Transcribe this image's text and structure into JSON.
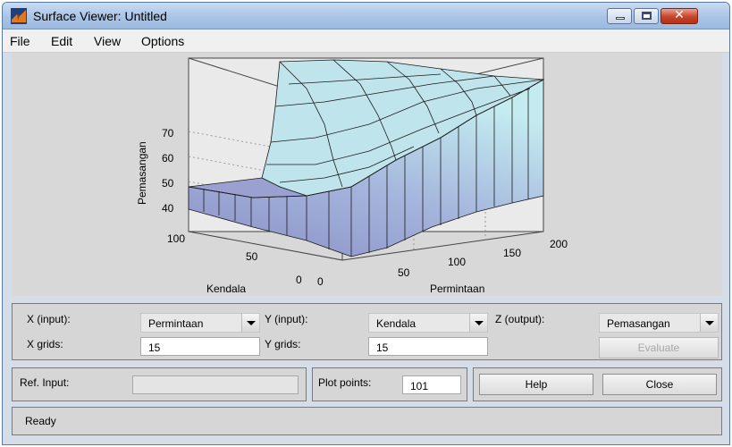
{
  "window": {
    "title": "Surface Viewer: Untitled"
  },
  "menu": [
    "File",
    "Edit",
    "View",
    "Options"
  ],
  "plot": {
    "zlabel": "Pemasangan",
    "xlabel": "Permintaan",
    "ylabel": "Kendala",
    "z_ticks": [
      "70",
      "60",
      "50",
      "40"
    ],
    "x_ticks": [
      "0",
      "50",
      "100",
      "150",
      "200"
    ],
    "y_ticks": [
      "100",
      "50",
      "0"
    ],
    "surface_color_high": "#bfe8ee",
    "surface_color_low": "#8a8fc6"
  },
  "controls": {
    "x_input_label": "X (input):",
    "x_input_value": "Permintaan",
    "y_input_label": "Y (input):",
    "y_input_value": "Kendala",
    "z_output_label": "Z (output):",
    "z_output_value": "Pemasangan",
    "x_grids_label": "X grids:",
    "x_grids_value": "15",
    "y_grids_label": "Y grids:",
    "y_grids_value": "15",
    "evaluate_label": "Evaluate",
    "ref_input_label": "Ref. Input:",
    "ref_input_value": "",
    "plot_points_label": "Plot points:",
    "plot_points_value": "101",
    "help_label": "Help",
    "close_label": "Close",
    "status": "Ready"
  }
}
